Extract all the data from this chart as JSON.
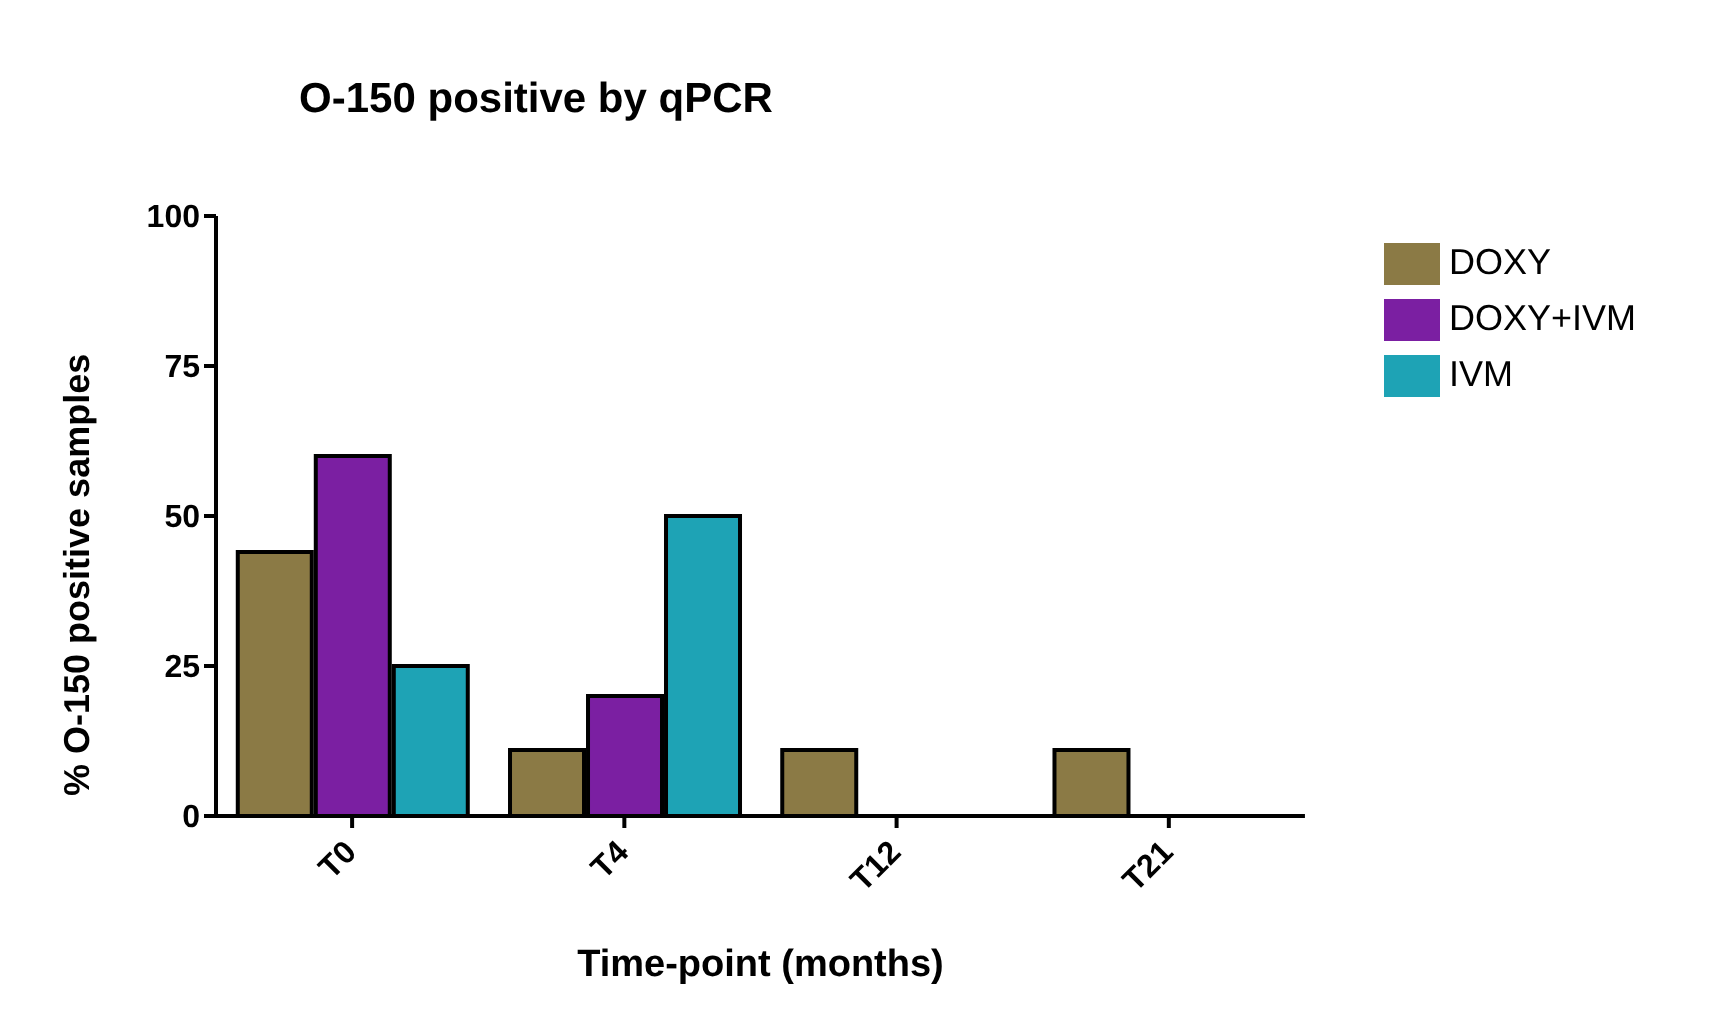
{
  "chart_data": {
    "type": "bar",
    "title": "O-150 positive by qPCR",
    "xlabel": "Time-point (months)",
    "ylabel": "% O-150 positive samples",
    "categories": [
      "T0",
      "T4",
      "T12",
      "T21"
    ],
    "series": [
      {
        "name": "DOXY",
        "color": "#8b7a45",
        "values": [
          44,
          11,
          11,
          11
        ]
      },
      {
        "name": "DOXY+IVM",
        "color": "#7b1fa2",
        "values": [
          60,
          20,
          0,
          0
        ]
      },
      {
        "name": "IVM",
        "color": "#1ea3b5",
        "values": [
          25,
          50,
          0,
          0
        ]
      }
    ],
    "ylim": [
      0,
      100
    ],
    "yticks": [
      0,
      25,
      50,
      75,
      100
    ],
    "grid": false,
    "legend": "right"
  }
}
